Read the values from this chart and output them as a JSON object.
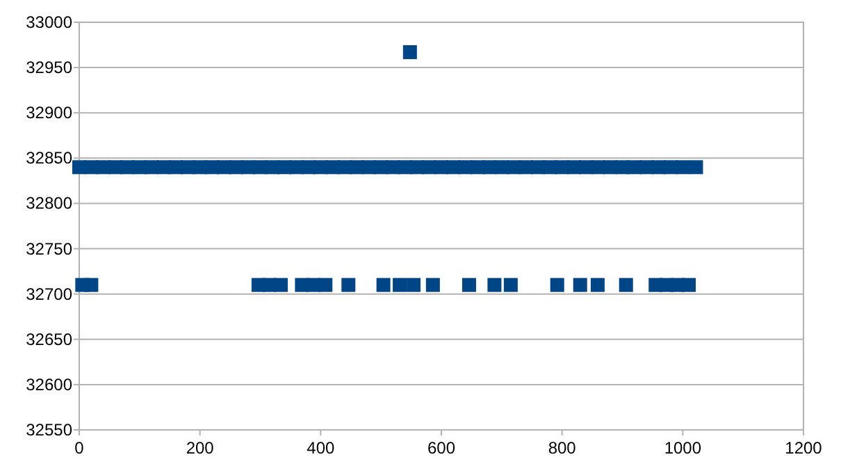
{
  "chart_data": {
    "type": "scatter",
    "marker": "square",
    "grid": "y",
    "xlim": [
      0,
      1200
    ],
    "xticks": [
      0,
      200,
      400,
      600,
      800,
      1000,
      1200
    ],
    "ylim": [
      32550,
      33000
    ],
    "yticks": [
      32550,
      32600,
      32650,
      32700,
      32750,
      32800,
      32850,
      32900,
      32950,
      33000
    ],
    "series": [
      {
        "color": "#004586",
        "x": [
          0,
          20,
          40,
          60,
          80,
          100,
          120,
          140,
          160,
          180,
          200,
          220,
          240,
          260,
          280,
          300,
          320,
          340,
          360,
          380,
          400,
          420,
          440,
          460,
          480,
          500,
          520,
          540,
          560,
          580,
          600,
          620,
          640,
          660,
          680,
          700,
          720,
          740,
          760,
          780,
          800,
          820,
          840,
          860,
          880,
          900,
          920,
          940,
          960,
          980,
          1000,
          1022
        ],
        "values": [
          32840,
          32840,
          32840,
          32840,
          32840,
          32840,
          32840,
          32840,
          32840,
          32840,
          32840,
          32840,
          32840,
          32840,
          32840,
          32840,
          32840,
          32840,
          32840,
          32840,
          32840,
          32840,
          32840,
          32840,
          32840,
          32840,
          32840,
          32840,
          32840,
          32840,
          32840,
          32840,
          32840,
          32840,
          32840,
          32840,
          32840,
          32840,
          32840,
          32840,
          32840,
          32840,
          32840,
          32840,
          32840,
          32840,
          32840,
          32840,
          32840,
          32840,
          32840,
          32840
        ]
      },
      {
        "color": "#004586",
        "x": [
          5,
          20,
          297,
          315,
          334,
          369,
          388,
          408,
          446,
          504,
          531,
          554,
          586,
          646,
          688,
          715,
          792,
          830,
          859,
          906,
          955,
          973,
          992,
          1010
        ],
        "values": [
          32710,
          32710,
          32710,
          32710,
          32710,
          32710,
          32710,
          32710,
          32710,
          32710,
          32710,
          32710,
          32710,
          32710,
          32710,
          32710,
          32710,
          32710,
          32710,
          32710,
          32710,
          32710,
          32710,
          32710
        ]
      },
      {
        "color": "#004586",
        "x": [
          548
        ],
        "values": [
          32967
        ]
      }
    ]
  }
}
